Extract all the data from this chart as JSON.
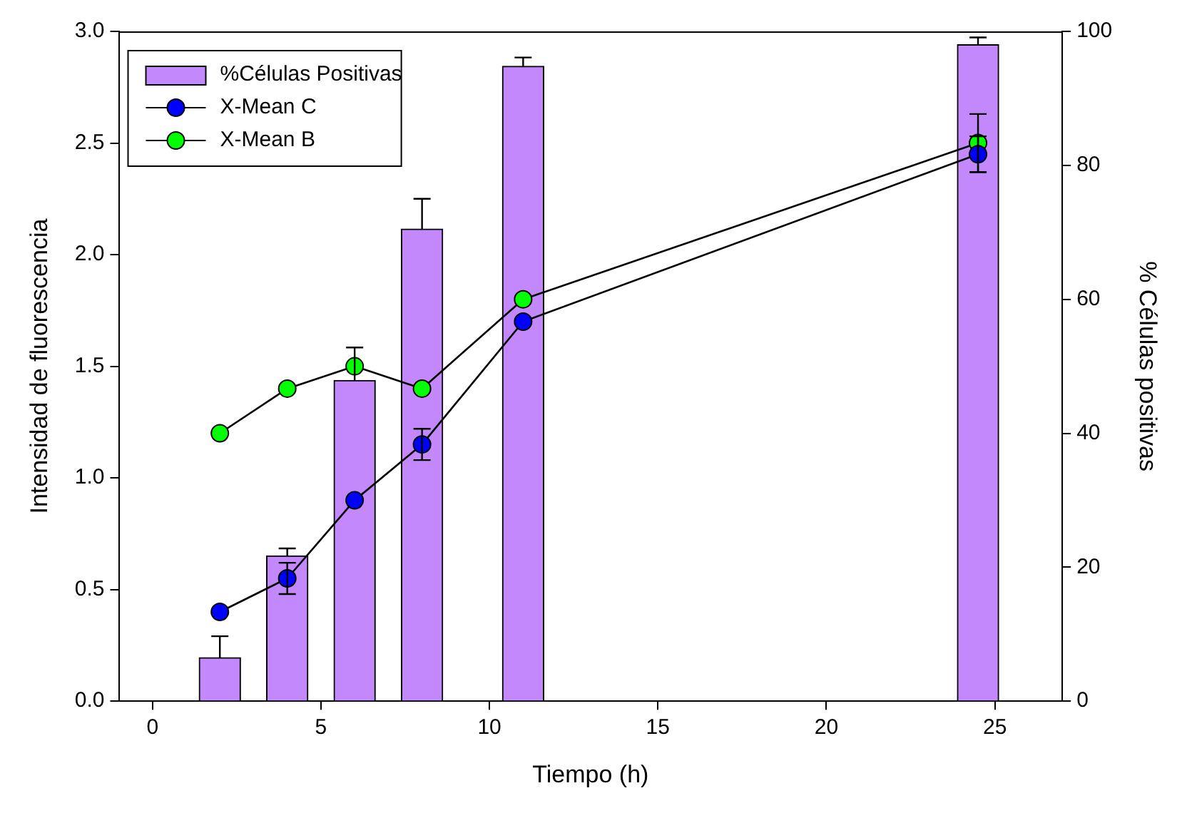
{
  "chart_data": {
    "type": "bar",
    "xlabel": "Tiempo (h)",
    "ylabel": "Intensidad de fluorescencia",
    "y2label": "% Células positivas",
    "x": [
      2,
      4,
      6,
      8,
      11,
      24.5
    ],
    "series": [
      {
        "name": "%Células Positivas",
        "axis": "y2",
        "color": "#c389fc",
        "values": [
          6.5,
          21.7,
          47.9,
          70.5,
          94.8,
          98.0
        ],
        "errors": [
          [
            6.5,
            9.7
          ],
          [
            21.7,
            22.8
          ],
          [
            47.9,
            52.8
          ],
          [
            70.5,
            75.0
          ],
          [
            94.8,
            96.1
          ],
          [
            98.0,
            99.1
          ]
        ]
      },
      {
        "name": "X-Mean C",
        "type": "line",
        "color": "#0000ff",
        "values": [
          0.4,
          0.55,
          0.9,
          1.15,
          1.7,
          2.45
        ],
        "errors": [
          null,
          0.07,
          null,
          0.07,
          null,
          0.08
        ]
      },
      {
        "name": "X-Mean B",
        "type": "line",
        "color": "#00ff00",
        "values": [
          1.2,
          1.4,
          1.5,
          1.4,
          1.8,
          2.5
        ],
        "errors": [
          null,
          null,
          null,
          null,
          null,
          0.13
        ]
      }
    ],
    "xlim": [
      -1,
      27
    ],
    "xticks": [
      0,
      5,
      10,
      15,
      20,
      25
    ],
    "ylim": [
      0,
      3
    ],
    "yticks": [
      {
        "value": 0,
        "label": "0.0"
      },
      {
        "value": 0.5,
        "label": "0.5"
      },
      {
        "value": 1,
        "label": "1.0"
      },
      {
        "value": 1.5,
        "label": "1.5"
      },
      {
        "value": 2,
        "label": "2.0"
      },
      {
        "value": 2.5,
        "label": "2.5"
      },
      {
        "value": 3,
        "label": "3.0"
      }
    ],
    "y2lim": [
      0,
      100
    ],
    "y2ticks": [
      0,
      20,
      40,
      60,
      80,
      100
    ],
    "grid": false,
    "legend": "top left",
    "marker": "circle",
    "line_style": "solid"
  }
}
